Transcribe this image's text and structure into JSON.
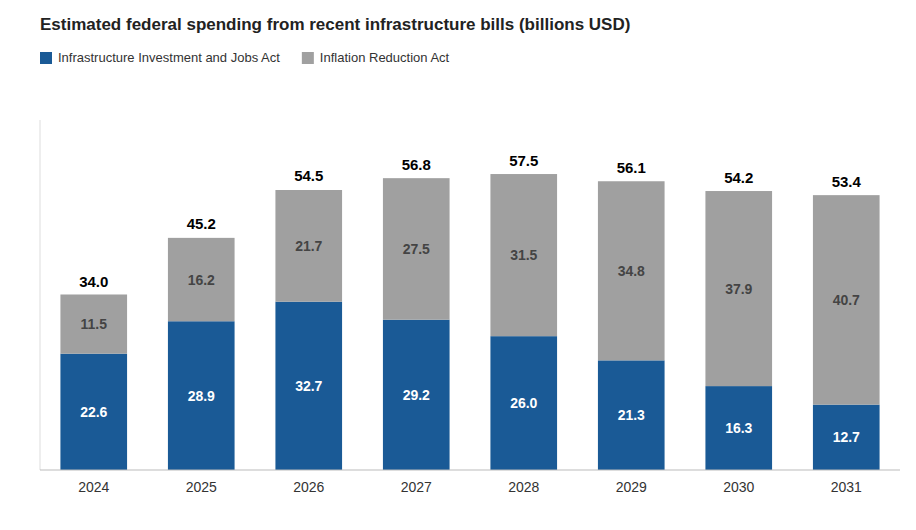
{
  "chart_data": {
    "type": "bar",
    "title": "Estimated federal spending from recent infrastructure bills (billions USD)",
    "categories": [
      "2024",
      "2025",
      "2026",
      "2027",
      "2028",
      "2029",
      "2030",
      "2031"
    ],
    "series": [
      {
        "name": "Infrastructure Investment and Jobs Act",
        "color": "#1a5a96",
        "values": [
          22.6,
          28.9,
          32.7,
          29.2,
          26.0,
          21.3,
          16.3,
          12.7
        ],
        "value_labels": [
          "22.6",
          "28.9",
          "32.7",
          "29.2",
          "26.0",
          "21.3",
          "16.3",
          "12.7"
        ]
      },
      {
        "name": "Inflation Reduction Act",
        "color": "#a0a0a0",
        "values": [
          11.5,
          16.2,
          21.7,
          27.5,
          31.5,
          34.8,
          37.9,
          40.7
        ],
        "value_labels": [
          "11.5",
          "16.2",
          "21.7",
          "27.5",
          "31.5",
          "34.8",
          "37.9",
          "40.7"
        ]
      }
    ],
    "totals": {
      "values": [
        34.0,
        45.2,
        54.5,
        56.8,
        57.5,
        56.1,
        54.2,
        53.4
      ],
      "value_labels": [
        "34.0",
        "45.2",
        "54.5",
        "56.8",
        "57.5",
        "56.1",
        "54.2",
        "53.4"
      ]
    },
    "stacked": true,
    "data_labels": true,
    "ylim": [
      0,
      68
    ],
    "yticks": [],
    "tick_labels": "x",
    "grid": false,
    "legend": "upper left"
  }
}
